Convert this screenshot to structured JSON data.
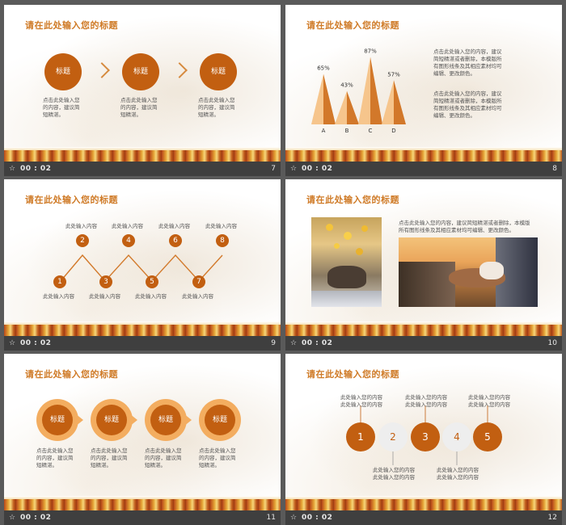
{
  "colors": {
    "accent": "#cf7a26",
    "dark_accent": "#c25f11",
    "bar": "#3f3f3f"
  },
  "slides": [
    {
      "number": "7",
      "time": "00 : 02",
      "title": "请在此处输入您的标题",
      "circles": [
        "标题",
        "标题",
        "标题"
      ],
      "captions": [
        "点击此处输入您的内容，建议简短精湛。",
        "点击此处输入您的内容，建议简短精湛。",
        "点击此处输入您的内容，建议简短精湛。"
      ],
      "caption_lines": [
        [
          "点击此处输入您",
          "的内容，建议简",
          "短精湛。"
        ],
        [
          "点击此处输入您",
          "的内容，建议简",
          "短精湛。"
        ],
        [
          "点击此处输入您",
          "的内容，建议简",
          "短精湛。"
        ]
      ]
    },
    {
      "number": "8",
      "time": "00 : 02",
      "title": "请在此处输入您的标题",
      "text_blocks": [
        [
          "点击此处输入您的内容，建议",
          "简短精湛或者删除，本模版所",
          "有图形线条及其相应素材均可",
          "编辑、更改颜色。"
        ],
        [
          "点击此处输入您的内容，建议",
          "简短精湛或者删除，本模版所",
          "有图形线条及其相应素材均可",
          "编辑、更改颜色。"
        ]
      ]
    },
    {
      "number": "9",
      "time": "00 : 02",
      "title": "请在此处输入您的标题",
      "top_nodes": [
        {
          "n": "2",
          "label": "此处输入内容"
        },
        {
          "n": "4",
          "label": "此处输入内容"
        },
        {
          "n": "6",
          "label": "此处输入内容"
        },
        {
          "n": "8",
          "label": "此处输入内容"
        }
      ],
      "bottom_nodes": [
        {
          "n": "1",
          "label": "此处输入内容"
        },
        {
          "n": "3",
          "label": "此处输入内容"
        },
        {
          "n": "5",
          "label": "此处输入内容"
        },
        {
          "n": "7",
          "label": "此处输入内容"
        }
      ]
    },
    {
      "number": "10",
      "time": "00 : 02",
      "title": "请在此处输入您的标题",
      "text_lines": [
        "点击此处输入您的内容，建议简短精湛或者删除，本模版",
        "所有图形线条及其相应素材均可编辑、更改颜色。"
      ]
    },
    {
      "number": "11",
      "time": "00 : 02",
      "title": "请在此处输入您的标题",
      "circles": [
        "标题",
        "标题",
        "标题",
        "标题"
      ],
      "caption_lines": [
        [
          "点击此处输入您",
          "的内容，建议简",
          "短精湛。"
        ],
        [
          "点击此处输入您",
          "的内容，建议简",
          "短精湛。"
        ],
        [
          "点击此处输入您",
          "的内容，建议简",
          "短精湛。"
        ],
        [
          "点击此处输入您",
          "的内容，建议简",
          "短精湛。"
        ]
      ]
    },
    {
      "number": "12",
      "time": "00 : 02",
      "title": "请在此处输入您的标题",
      "circles": [
        "1",
        "2",
        "3",
        "4",
        "5"
      ],
      "top_labels": [
        [
          "此处输入您的内容",
          "此处输入您的内容"
        ],
        [
          "此处输入您的内容",
          "此处输入您的内容"
        ],
        [
          "此处输入您的内容",
          "此处输入您的内容"
        ]
      ],
      "bottom_labels": [
        [
          "此处输入您的内容",
          "此处输入您的内容"
        ],
        [
          "此处输入您的内容",
          "此处输入您的内容"
        ]
      ]
    }
  ],
  "chart_data": {
    "type": "area",
    "categories": [
      "A",
      "B",
      "C",
      "D"
    ],
    "values": [
      65,
      43,
      87,
      57
    ],
    "data_labels": [
      "65%",
      "43%",
      "87%",
      "57%"
    ],
    "ylim": [
      0,
      100
    ],
    "title": "",
    "xlabel": "",
    "ylabel": ""
  }
}
